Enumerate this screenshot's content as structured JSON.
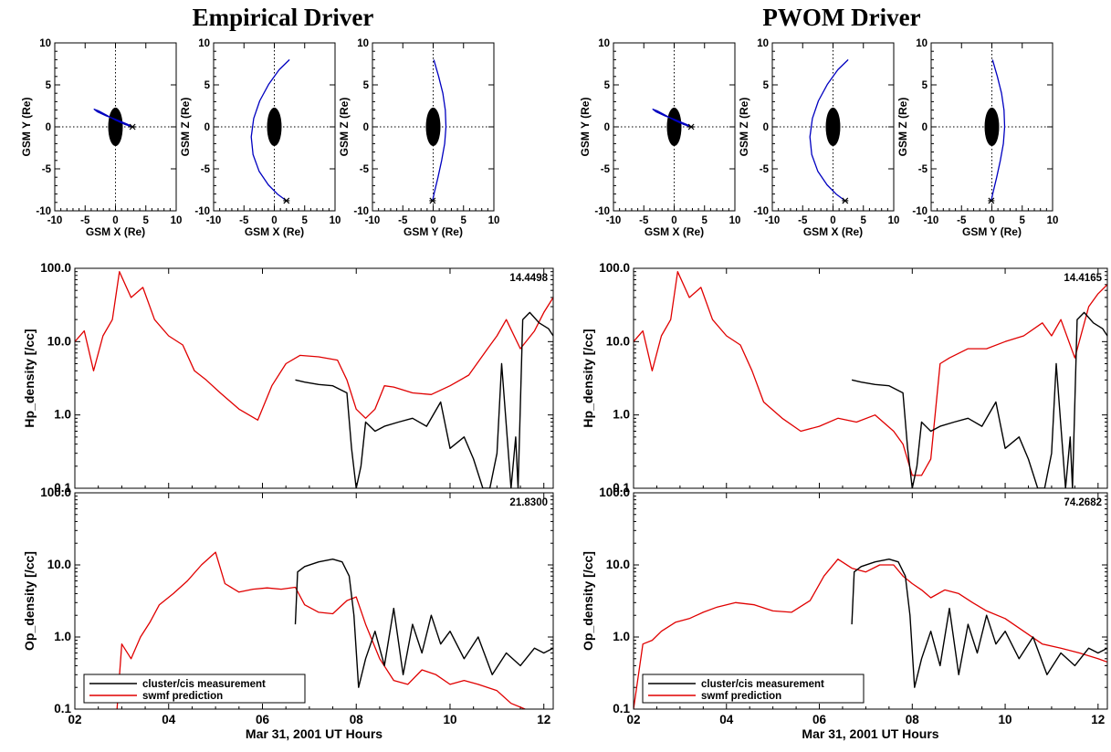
{
  "figure": {
    "columns": [
      {
        "title": "Empirical Driver"
      },
      {
        "title": "PWOM Driver"
      }
    ],
    "legend": {
      "entries": [
        "cluster/cis measurement",
        "swmf prediction"
      ]
    },
    "colors": {
      "measurement": "#000000",
      "prediction": "#e00000",
      "orbit": "#0000c0",
      "earth": "#000000"
    }
  },
  "chart_data": [
    {
      "type": "line",
      "panel": "orbit-xy",
      "column": "Empirical Driver",
      "xlabel": "GSM X (Re)",
      "ylabel": "GSM Y (Re)",
      "xlim": [
        -10,
        10
      ],
      "ylim": [
        -10,
        10
      ],
      "xticks": [
        "-10",
        "-5",
        "0",
        "5",
        "10"
      ],
      "yticks": [
        "10",
        "5",
        "0",
        "-5",
        "-10"
      ],
      "series": [
        {
          "x": [
            2.8,
            1.5,
            0.0,
            -1.5,
            -2.8,
            -3.5,
            -3.0,
            -1.5,
            0.0,
            1.0,
            2.0,
            2.8
          ],
          "y": [
            0.0,
            0.3,
            0.8,
            1.4,
            1.9,
            2.1,
            1.8,
            1.3,
            0.9,
            0.6,
            0.3,
            0.0
          ]
        }
      ]
    },
    {
      "type": "line",
      "panel": "orbit-xz",
      "column": "Empirical Driver",
      "xlabel": "GSM X (Re)",
      "ylabel": "GSM Z (Re)",
      "xlim": [
        -10,
        10
      ],
      "ylim": [
        -10,
        10
      ],
      "xticks": [
        "-10",
        "-5",
        "0",
        "5",
        "10"
      ],
      "yticks": [
        "10",
        "5",
        "0",
        "-5",
        "-10"
      ],
      "series": [
        {
          "x": [
            2.5,
            0.8,
            -0.9,
            -2.4,
            -3.4,
            -3.8,
            -3.5,
            -2.5,
            -1.0,
            0.5,
            2.0
          ],
          "y": [
            8.0,
            6.8,
            5.1,
            3.1,
            1.0,
            -1.2,
            -3.3,
            -5.3,
            -6.9,
            -8.0,
            -8.8
          ]
        }
      ]
    },
    {
      "type": "line",
      "panel": "orbit-yz",
      "column": "Empirical Driver",
      "xlabel": "GSM Y (Re)",
      "ylabel": "GSM Z (Re)",
      "xlim": [
        -10,
        10
      ],
      "ylim": [
        -10,
        10
      ],
      "xticks": [
        "-10",
        "-5",
        "0",
        "5",
        "10"
      ],
      "yticks": [
        "10",
        "5",
        "0",
        "-5",
        "-10"
      ],
      "series": [
        {
          "x": [
            0.1,
            0.9,
            1.6,
            2.0,
            2.1,
            1.9,
            1.4,
            0.8,
            0.2,
            -0.1
          ],
          "y": [
            8.0,
            6.0,
            4.0,
            2.0,
            0.0,
            -2.0,
            -4.0,
            -6.0,
            -7.8,
            -8.8
          ]
        }
      ]
    },
    {
      "type": "line",
      "panel": "orbit-xy",
      "column": "PWOM Driver",
      "xlabel": "GSM X (Re)",
      "ylabel": "GSM Y (Re)",
      "xlim": [
        -10,
        10
      ],
      "ylim": [
        -10,
        10
      ],
      "xticks": [
        "-10",
        "-5",
        "0",
        "5",
        "10"
      ],
      "yticks": [
        "10",
        "5",
        "0",
        "-5",
        "-10"
      ],
      "series": [
        {
          "x": [
            2.8,
            1.5,
            0.0,
            -1.5,
            -2.8,
            -3.5,
            -3.0,
            -1.5,
            0.0,
            1.0,
            2.0,
            2.8
          ],
          "y": [
            0.0,
            0.3,
            0.8,
            1.4,
            1.9,
            2.1,
            1.8,
            1.3,
            0.9,
            0.6,
            0.3,
            0.0
          ]
        }
      ]
    },
    {
      "type": "line",
      "panel": "orbit-xz",
      "column": "PWOM Driver",
      "xlabel": "GSM X (Re)",
      "ylabel": "GSM Z (Re)",
      "xlim": [
        -10,
        10
      ],
      "ylim": [
        -10,
        10
      ],
      "xticks": [
        "-10",
        "-5",
        "0",
        "5",
        "10"
      ],
      "yticks": [
        "10",
        "5",
        "0",
        "-5",
        "-10"
      ],
      "series": [
        {
          "x": [
            2.5,
            0.8,
            -0.9,
            -2.4,
            -3.4,
            -3.8,
            -3.5,
            -2.5,
            -1.0,
            0.5,
            2.0
          ],
          "y": [
            8.0,
            6.8,
            5.1,
            3.1,
            1.0,
            -1.2,
            -3.3,
            -5.3,
            -6.9,
            -8.0,
            -8.8
          ]
        }
      ]
    },
    {
      "type": "line",
      "panel": "orbit-yz",
      "column": "PWOM Driver",
      "xlabel": "GSM Y (Re)",
      "ylabel": "GSM Z (Re)",
      "xlim": [
        -10,
        10
      ],
      "ylim": [
        -10,
        10
      ],
      "xticks": [
        "-10",
        "-5",
        "0",
        "5",
        "10"
      ],
      "yticks": [
        "10",
        "5",
        "0",
        "-5",
        "-10"
      ],
      "series": [
        {
          "x": [
            0.1,
            0.9,
            1.6,
            2.0,
            2.1,
            1.9,
            1.4,
            0.8,
            0.2,
            -0.1
          ],
          "y": [
            8.0,
            6.0,
            4.0,
            2.0,
            0.0,
            -2.0,
            -4.0,
            -6.0,
            -7.8,
            -8.8
          ]
        }
      ]
    },
    {
      "type": "line",
      "panel": "hp-density",
      "column": "Empirical Driver",
      "ylabel": "Hp_density [/cc]",
      "xlabel": "",
      "log_y": true,
      "xlim": [
        2.0,
        12.2
      ],
      "ylim": [
        0.1,
        100
      ],
      "xticks": [
        "02",
        "04",
        "06",
        "08",
        "10",
        "12"
      ],
      "yticks": [
        "100.0",
        "10.0",
        "1.0",
        "0.1"
      ],
      "value_label": "14.4498",
      "series": [
        {
          "name": "swmf prediction",
          "x": [
            2.0,
            2.2,
            2.4,
            2.6,
            2.8,
            2.95,
            3.2,
            3.45,
            3.7,
            4.0,
            4.3,
            4.55,
            4.8,
            5.1,
            5.5,
            5.9,
            6.2,
            6.5,
            6.8,
            7.2,
            7.6,
            7.8,
            8.0,
            8.2,
            8.4,
            8.6,
            8.8,
            9.2,
            9.6,
            10.0,
            10.4,
            10.8,
            11.0,
            11.2,
            11.5,
            11.8,
            12.0,
            12.2
          ],
          "y": [
            10,
            14,
            4,
            12,
            20,
            90,
            40,
            55,
            20,
            12,
            9,
            4,
            3,
            2,
            1.2,
            0.85,
            2.5,
            5,
            6.5,
            6.2,
            5.6,
            3,
            1.2,
            0.9,
            1.2,
            2.5,
            2.4,
            2.0,
            1.9,
            2.5,
            3.5,
            8,
            12,
            20,
            8,
            14,
            25,
            40
          ]
        },
        {
          "name": "cluster/cis measurement",
          "x": [
            6.7,
            6.9,
            7.2,
            7.5,
            7.8,
            7.9,
            8.0,
            8.1,
            8.2,
            8.4,
            8.6,
            8.9,
            9.2,
            9.5,
            9.8,
            10.0,
            10.3,
            10.5,
            10.7,
            10.85,
            11.0,
            11.1,
            11.3,
            11.4,
            11.45,
            11.55,
            11.7,
            11.9,
            12.1,
            12.2
          ],
          "y": [
            3,
            2.8,
            2.6,
            2.5,
            2.0,
            0.35,
            0.1,
            0.2,
            0.8,
            0.6,
            0.7,
            0.8,
            0.9,
            0.7,
            1.5,
            0.35,
            0.5,
            0.25,
            0.1,
            0.1,
            0.3,
            5,
            0.1,
            0.5,
            0.1,
            20,
            25,
            18,
            15,
            12
          ]
        }
      ]
    },
    {
      "type": "line",
      "panel": "op-density",
      "column": "Empirical Driver",
      "ylabel": "Op_density [/cc]",
      "xlabel": "Mar 31, 2001 UT Hours",
      "log_y": true,
      "xlim": [
        2.0,
        12.2
      ],
      "ylim": [
        0.1,
        100
      ],
      "xticks": [
        "02",
        "04",
        "06",
        "08",
        "10",
        "12"
      ],
      "yticks": [
        "100.0",
        "10.0",
        "1.0",
        "0.1"
      ],
      "value_label": "21.8300",
      "series": [
        {
          "name": "swmf prediction",
          "x": [
            2.9,
            3.0,
            3.2,
            3.4,
            3.6,
            3.8,
            4.1,
            4.4,
            4.7,
            5.0,
            5.2,
            5.5,
            5.8,
            6.1,
            6.4,
            6.7,
            6.9,
            7.2,
            7.5,
            7.8,
            8.0,
            8.2,
            8.5,
            8.8,
            9.1,
            9.4,
            9.7,
            10.0,
            10.3,
            10.6,
            11.0,
            11.3,
            11.6
          ],
          "y": [
            0.1,
            0.8,
            0.5,
            1.0,
            1.6,
            2.8,
            4.0,
            6.0,
            10,
            15,
            5.5,
            4.2,
            4.6,
            4.8,
            4.6,
            4.9,
            2.8,
            2.2,
            2.1,
            3.2,
            3.6,
            1.5,
            0.5,
            0.25,
            0.22,
            0.35,
            0.3,
            0.22,
            0.25,
            0.22,
            0.18,
            0.12,
            0.1
          ]
        },
        {
          "name": "cluster/cis measurement",
          "x": [
            6.7,
            6.75,
            6.9,
            7.2,
            7.5,
            7.7,
            7.85,
            7.95,
            8.05,
            8.2,
            8.4,
            8.6,
            8.8,
            9.0,
            9.2,
            9.4,
            9.6,
            9.8,
            10.0,
            10.3,
            10.6,
            10.9,
            11.2,
            11.5,
            11.8,
            12.0,
            12.2
          ],
          "y": [
            1.5,
            8,
            9.5,
            11,
            12,
            11,
            7,
            2,
            0.2,
            0.5,
            1.2,
            0.4,
            2.5,
            0.3,
            1.5,
            0.6,
            2.0,
            0.8,
            1.2,
            0.5,
            1.0,
            0.3,
            0.6,
            0.4,
            0.7,
            0.6,
            0.7
          ]
        }
      ]
    },
    {
      "type": "line",
      "panel": "hp-density",
      "column": "PWOM Driver",
      "ylabel": "Hp_density [/cc]",
      "xlabel": "",
      "log_y": true,
      "xlim": [
        2.0,
        12.2
      ],
      "ylim": [
        0.1,
        100
      ],
      "xticks": [
        "02",
        "04",
        "06",
        "08",
        "10",
        "12"
      ],
      "yticks": [
        "100.0",
        "10.0",
        "1.0",
        "0.1"
      ],
      "value_label": "14.4165",
      "series": [
        {
          "name": "swmf prediction",
          "x": [
            2.0,
            2.2,
            2.4,
            2.6,
            2.8,
            2.95,
            3.2,
            3.45,
            3.7,
            4.0,
            4.3,
            4.55,
            4.8,
            5.2,
            5.6,
            6.0,
            6.4,
            6.8,
            7.2,
            7.6,
            7.8,
            8.0,
            8.2,
            8.4,
            8.6,
            8.8,
            9.2,
            9.6,
            10.0,
            10.4,
            10.8,
            11.0,
            11.2,
            11.5,
            11.8,
            12.0,
            12.2
          ],
          "y": [
            10,
            14,
            4,
            12,
            20,
            90,
            40,
            55,
            20,
            12,
            9,
            4,
            1.5,
            0.9,
            0.6,
            0.7,
            0.9,
            0.8,
            1.0,
            0.6,
            0.4,
            0.15,
            0.15,
            0.25,
            5,
            6,
            8,
            8,
            10,
            12,
            18,
            12,
            20,
            6,
            30,
            45,
            60
          ]
        },
        {
          "name": "cluster/cis measurement",
          "x": [
            6.7,
            6.9,
            7.2,
            7.5,
            7.8,
            7.9,
            8.0,
            8.1,
            8.2,
            8.4,
            8.6,
            8.9,
            9.2,
            9.5,
            9.8,
            10.0,
            10.3,
            10.5,
            10.7,
            10.85,
            11.0,
            11.1,
            11.3,
            11.4,
            11.45,
            11.55,
            11.7,
            11.9,
            12.1,
            12.2
          ],
          "y": [
            3,
            2.8,
            2.6,
            2.5,
            2.0,
            0.35,
            0.1,
            0.2,
            0.8,
            0.6,
            0.7,
            0.8,
            0.9,
            0.7,
            1.5,
            0.35,
            0.5,
            0.25,
            0.1,
            0.1,
            0.3,
            5,
            0.1,
            0.5,
            0.1,
            20,
            25,
            18,
            15,
            12
          ]
        }
      ]
    },
    {
      "type": "line",
      "panel": "op-density",
      "column": "PWOM Driver",
      "ylabel": "Op_density [/cc]",
      "xlabel": "Mar 31, 2001 UT Hours",
      "log_y": true,
      "xlim": [
        2.0,
        12.2
      ],
      "ylim": [
        0.1,
        100
      ],
      "xticks": [
        "02",
        "04",
        "06",
        "08",
        "10",
        "12"
      ],
      "yticks": [
        "100.0",
        "10.0",
        "1.0",
        "0.1"
      ],
      "value_label": "74.2682",
      "series": [
        {
          "name": "swmf prediction",
          "x": [
            2.0,
            2.2,
            2.4,
            2.6,
            2.9,
            3.2,
            3.5,
            3.8,
            4.2,
            4.6,
            5.0,
            5.4,
            5.8,
            6.1,
            6.4,
            6.7,
            7.0,
            7.3,
            7.6,
            7.8,
            8.0,
            8.2,
            8.4,
            8.7,
            9.0,
            9.3,
            9.6,
            10.0,
            10.4,
            10.8,
            11.2,
            11.6,
            12.0,
            12.2
          ],
          "y": [
            0.1,
            0.8,
            0.9,
            1.2,
            1.6,
            1.8,
            2.2,
            2.6,
            3.0,
            2.8,
            2.3,
            2.2,
            3.2,
            7,
            12,
            9,
            8,
            10,
            10,
            7,
            5.5,
            4.5,
            3.5,
            4.5,
            4,
            3,
            2.3,
            1.8,
            1.2,
            0.8,
            0.7,
            0.6,
            0.5,
            0.45
          ]
        },
        {
          "name": "cluster/cis measurement",
          "x": [
            6.7,
            6.75,
            6.9,
            7.2,
            7.5,
            7.7,
            7.85,
            7.95,
            8.05,
            8.2,
            8.4,
            8.6,
            8.8,
            9.0,
            9.2,
            9.4,
            9.6,
            9.8,
            10.0,
            10.3,
            10.6,
            10.9,
            11.2,
            11.5,
            11.8,
            12.0,
            12.2
          ],
          "y": [
            1.5,
            8,
            9.5,
            11,
            12,
            11,
            7,
            2,
            0.2,
            0.5,
            1.2,
            0.4,
            2.5,
            0.3,
            1.5,
            0.6,
            2.0,
            0.8,
            1.2,
            0.5,
            1.0,
            0.3,
            0.6,
            0.4,
            0.7,
            0.6,
            0.7
          ]
        }
      ]
    }
  ]
}
